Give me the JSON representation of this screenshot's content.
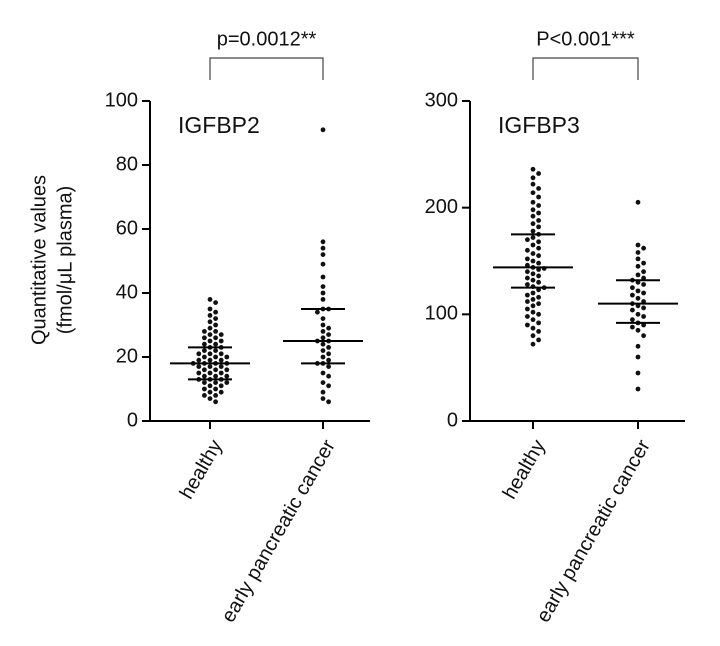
{
  "chart_data": [
    {
      "type": "strip",
      "title": "IGFBP2",
      "annotation": "p=0.0012**",
      "ylabel": [
        "Quantitative values",
        "(fmol/μL plasma)"
      ],
      "categories": [
        "healthy",
        "early pancreatic cancer"
      ],
      "color": "#111111",
      "groups": [
        {
          "values": [
            38,
            37,
            35,
            34,
            33,
            32,
            31,
            30,
            29,
            28,
            28,
            27,
            27,
            26,
            26,
            25,
            25,
            24,
            24,
            23,
            23,
            22,
            22,
            21,
            21,
            21,
            20,
            20,
            20,
            19,
            19,
            19,
            18,
            18,
            18,
            18,
            17,
            17,
            17,
            16,
            16,
            16,
            15,
            15,
            15,
            14,
            14,
            14,
            13,
            13,
            13,
            12,
            12,
            12,
            11,
            11,
            10,
            10,
            9,
            9,
            8,
            8,
            7,
            6
          ],
          "median": 18,
          "q1": 13,
          "q3": 23
        },
        {
          "values": [
            91,
            56,
            54,
            52,
            49,
            45,
            42,
            40,
            38,
            35,
            35,
            34,
            32,
            30,
            29,
            28,
            27,
            26,
            25,
            25,
            24,
            23,
            22,
            21,
            20,
            19,
            18,
            18,
            17,
            15,
            14,
            12,
            11,
            9,
            7,
            6
          ],
          "median": 25,
          "q1": 18,
          "q3": 35
        }
      ],
      "ylim": [
        0,
        100
      ],
      "yticks": [
        0,
        20,
        40,
        60,
        80,
        100
      ]
    },
    {
      "type": "strip",
      "title": "IGFBP3",
      "annotation": "P<0.001***",
      "categories": [
        "healthy",
        "early pancreatic cancer"
      ],
      "color": "#111111",
      "groups": [
        {
          "values": [
            236,
            232,
            228,
            222,
            218,
            214,
            210,
            205,
            202,
            198,
            195,
            192,
            188,
            185,
            182,
            178,
            175,
            172,
            170,
            168,
            165,
            162,
            160,
            157,
            155,
            152,
            150,
            148,
            146,
            144,
            143,
            142,
            140,
            138,
            136,
            134,
            132,
            130,
            128,
            126,
            125,
            123,
            120,
            118,
            116,
            114,
            112,
            110,
            108,
            105,
            102,
            100,
            98,
            95,
            92,
            90,
            87,
            84,
            80,
            76,
            72
          ],
          "median": 144,
          "q1": 125,
          "q3": 175
        },
        {
          "values": [
            205,
            165,
            162,
            158,
            152,
            148,
            145,
            140,
            137,
            134,
            132,
            130,
            128,
            125,
            122,
            120,
            118,
            115,
            112,
            110,
            108,
            106,
            104,
            100,
            98,
            95,
            92,
            90,
            88,
            85,
            80,
            70,
            60,
            45,
            30
          ],
          "median": 110,
          "q1": 92,
          "q3": 132
        }
      ],
      "ylim": [
        0,
        300
      ],
      "yticks": [
        0,
        100,
        200,
        300
      ]
    }
  ]
}
